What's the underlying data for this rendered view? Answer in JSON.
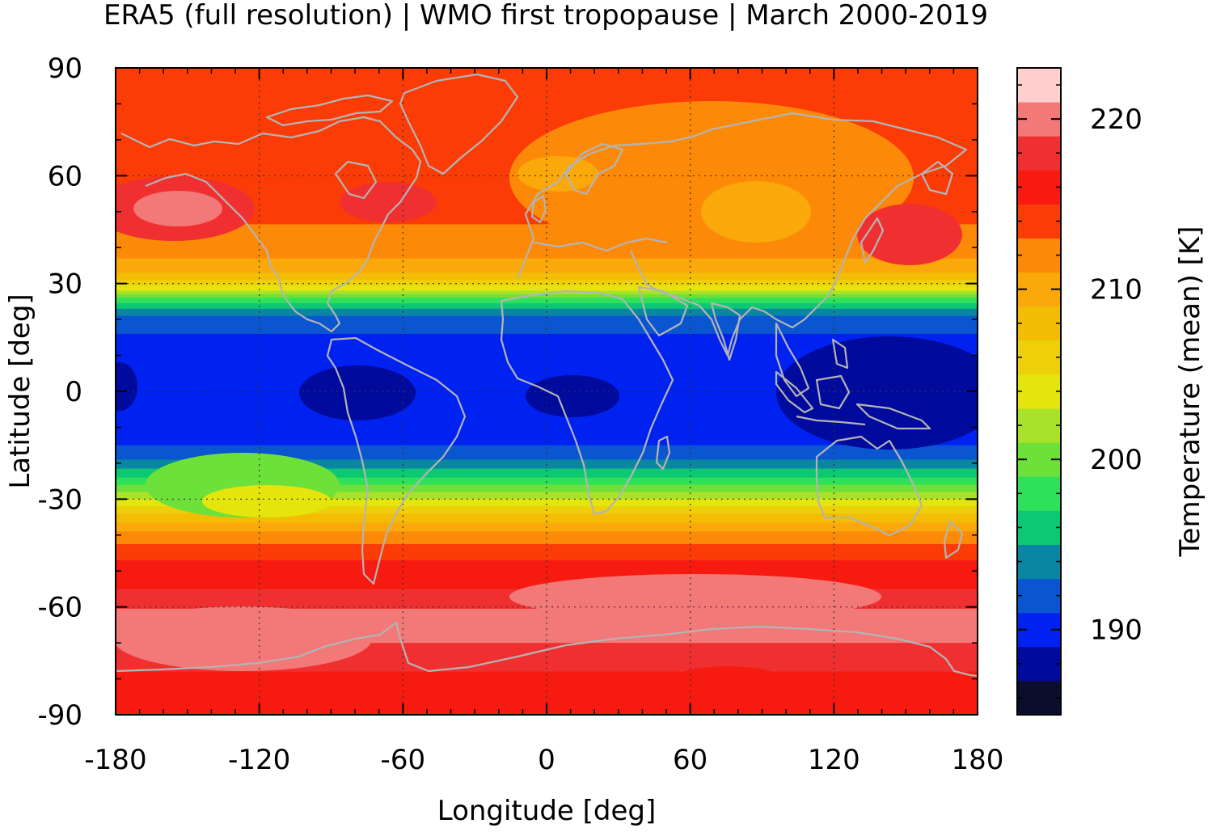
{
  "title": "ERA5 (full resolution) | WMO first tropopause | March 2000-2019",
  "x_axis": {
    "label": "Longitude [deg]",
    "range": [
      -180,
      180
    ],
    "ticks": [
      "-180",
      "-120",
      "-60",
      "0",
      "60",
      "120",
      "180"
    ]
  },
  "y_axis": {
    "label": "Latitude [deg]",
    "range": [
      -90,
      90
    ],
    "ticks": [
      "90",
      "60",
      "30",
      "0",
      "-30",
      "-60",
      "-90"
    ]
  },
  "colorbar": {
    "label": "Temperature (mean) [K]",
    "range": [
      185,
      223
    ],
    "ticks": [
      "220",
      "210",
      "200",
      "190"
    ],
    "levels": [
      {
        "min": 185,
        "color": "#0b0d2d"
      },
      {
        "min": 187,
        "color": "#000a9c"
      },
      {
        "min": 189,
        "color": "#0022f0"
      },
      {
        "min": 191,
        "color": "#0a56d0"
      },
      {
        "min": 193,
        "color": "#0a86a2"
      },
      {
        "min": 195,
        "color": "#0cc872"
      },
      {
        "min": 197,
        "color": "#2ee05a"
      },
      {
        "min": 199,
        "color": "#6ee03a"
      },
      {
        "min": 201,
        "color": "#a9e22a"
      },
      {
        "min": 203,
        "color": "#e4e50c"
      },
      {
        "min": 205,
        "color": "#edd00a"
      },
      {
        "min": 207,
        "color": "#f4bd05"
      },
      {
        "min": 209,
        "color": "#faa80a"
      },
      {
        "min": 211,
        "color": "#fc8a08"
      },
      {
        "min": 213,
        "color": "#fb3c07"
      },
      {
        "min": 215,
        "color": "#f61a10"
      },
      {
        "min": 217,
        "color": "#f03030"
      },
      {
        "min": 219,
        "color": "#f37878"
      },
      {
        "min": 221,
        "color": "#ffcece"
      }
    ]
  },
  "chart_data": {
    "type": "heatmap",
    "title": "ERA5 (full resolution) | WMO first tropopause | March 2000-2019",
    "xlabel": "Longitude [deg]",
    "ylabel": "Latitude [deg]",
    "xlim": [
      -180,
      180
    ],
    "ylim": [
      -90,
      90
    ],
    "zlabel": "Temperature (mean) [K]",
    "zlim": [
      185,
      223
    ],
    "grid": true,
    "latitudinal_mean_temperature_K": [
      {
        "lat": 90,
        "value": 215
      },
      {
        "lat": 80,
        "value": 214
      },
      {
        "lat": 70,
        "value": 213.5
      },
      {
        "lat": 60,
        "value": 214
      },
      {
        "lat": 50,
        "value": 213.5
      },
      {
        "lat": 40,
        "value": 212
      },
      {
        "lat": 34,
        "value": 210
      },
      {
        "lat": 30,
        "value": 206
      },
      {
        "lat": 27,
        "value": 201
      },
      {
        "lat": 24,
        "value": 196
      },
      {
        "lat": 20,
        "value": 192
      },
      {
        "lat": 10,
        "value": 189.5
      },
      {
        "lat": 0,
        "value": 189
      },
      {
        "lat": -10,
        "value": 189.5
      },
      {
        "lat": -18,
        "value": 192
      },
      {
        "lat": -24,
        "value": 197
      },
      {
        "lat": -29,
        "value": 202
      },
      {
        "lat": -34,
        "value": 207
      },
      {
        "lat": -40,
        "value": 212
      },
      {
        "lat": -48,
        "value": 215.5
      },
      {
        "lat": -55,
        "value": 217
      },
      {
        "lat": -62,
        "value": 219.5
      },
      {
        "lat": -70,
        "value": 219
      },
      {
        "lat": -78,
        "value": 217
      },
      {
        "lat": -90,
        "value": 215.5
      }
    ]
  }
}
